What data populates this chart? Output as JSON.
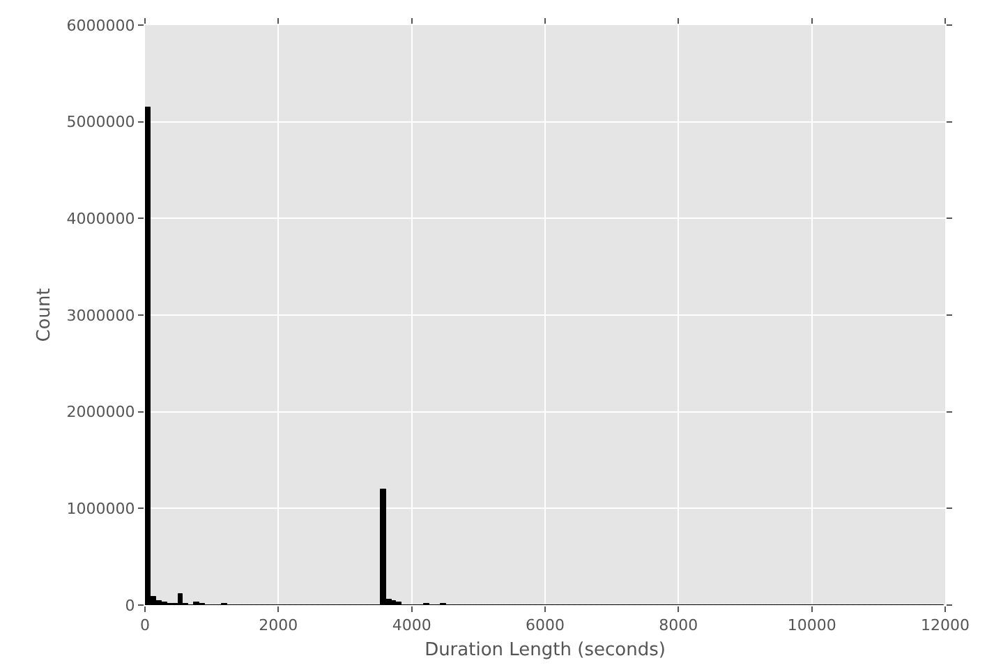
{
  "chart_data": {
    "type": "histogram",
    "xlabel": "Duration Length (seconds)",
    "ylabel": "Count",
    "bins": [
      0,
      82,
      164,
      246,
      328,
      410,
      492,
      574,
      656,
      738,
      820,
      902,
      984,
      1066,
      1148,
      1230,
      1312,
      1394,
      1476,
      1558,
      1640,
      1722,
      1804,
      1886,
      1968,
      2050,
      2132,
      2214,
      2296,
      2378,
      2460,
      2542,
      2624,
      2706,
      2788,
      2870,
      2952,
      3034,
      3116,
      3198,
      3280,
      3362,
      3444,
      3526,
      3608,
      3690,
      3772,
      3854,
      3936,
      4018,
      4100,
      4182,
      4264,
      4346,
      4428,
      4510,
      4592,
      4674,
      4756,
      4838,
      4920,
      5002,
      5084,
      5166,
      5248,
      5330,
      5412,
      5494,
      5576,
      5658,
      5740,
      5822,
      5904,
      5986,
      6068,
      6150,
      6232,
      6314,
      6396,
      6478,
      6560,
      6642,
      6724,
      6806,
      6888,
      6970,
      7052,
      7134,
      7216,
      7298,
      7380,
      7462,
      7544,
      7626,
      7708,
      7790,
      7872,
      7954,
      8036,
      8118,
      8200,
      8282,
      8364,
      8446,
      8528,
      8610,
      8692,
      8774,
      8856,
      8938,
      9020,
      9102,
      9184,
      9266,
      9348,
      9430,
      9512,
      9594,
      9676,
      9758,
      9840,
      9922,
      10004,
      10086,
      10168,
      10250,
      10332,
      10414,
      10496,
      10578,
      10660,
      10742,
      10824,
      10906,
      10988,
      11070,
      11152,
      11234,
      11316,
      11398,
      11480,
      11562,
      11644,
      11726,
      11808,
      11890,
      11972
    ],
    "values": [
      5150000,
      90000,
      50000,
      30000,
      20000,
      20000,
      110000,
      10000,
      0,
      30000,
      10000,
      0,
      0,
      0,
      10000,
      0,
      0,
      0,
      0,
      0,
      0,
      0,
      0,
      0,
      0,
      0,
      0,
      0,
      0,
      0,
      0,
      0,
      0,
      0,
      0,
      0,
      0,
      0,
      0,
      0,
      0,
      0,
      0,
      1190000,
      60000,
      40000,
      30000,
      0,
      0,
      0,
      0,
      10000,
      0,
      0,
      10000,
      0,
      0,
      0,
      0,
      0,
      0,
      0,
      0,
      0,
      0,
      0,
      0,
      0,
      0,
      0,
      0,
      0,
      0,
      0,
      0,
      0,
      0,
      0,
      0,
      0,
      0,
      0,
      0,
      0,
      0,
      0,
      0,
      0,
      0,
      0,
      0,
      0,
      0,
      0,
      0,
      0,
      0,
      0,
      0,
      0,
      0,
      0,
      0,
      0,
      0,
      0,
      0,
      0,
      0,
      0,
      0,
      0,
      0,
      0,
      0,
      0,
      0,
      0,
      0,
      0,
      0,
      0,
      0,
      0,
      0,
      0,
      0,
      0,
      0,
      0,
      0,
      0,
      0,
      0,
      0,
      0,
      0,
      0,
      0,
      0,
      0,
      0,
      0,
      0,
      0,
      0
    ],
    "color": "#000000",
    "xlim": [
      0,
      12000
    ],
    "xticks": [
      0,
      2000,
      4000,
      6000,
      8000,
      10000,
      12000
    ],
    "ylim": [
      0,
      6000000
    ],
    "yticks": [
      0,
      1000000,
      2000000,
      3000000,
      4000000,
      5000000,
      6000000
    ],
    "grid": true
  }
}
